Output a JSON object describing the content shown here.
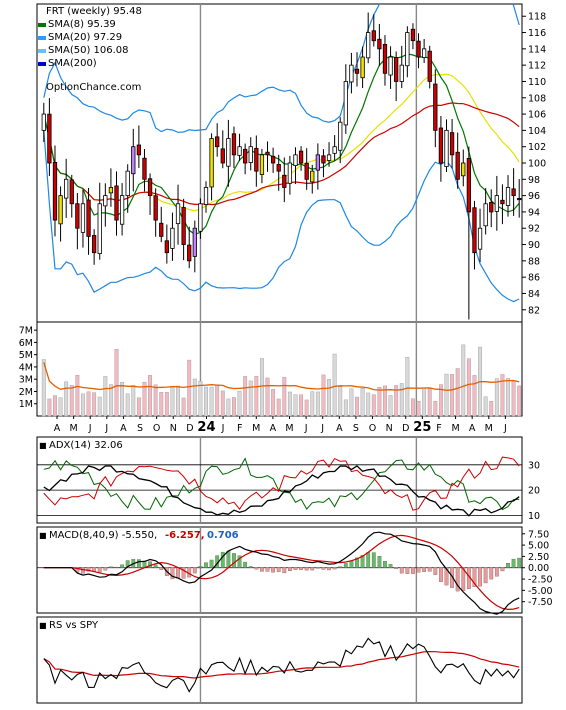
{
  "chart_data": {
    "type": "candlestick",
    "title": "FRT (weekly) 95.48",
    "source": "OptionChance.com",
    "colors": {
      "up_candle": "#ffffff",
      "down_candle": "#cc0000",
      "upper_band": "#1e88e5",
      "lower_band": "#1e88e5",
      "sma8": "#007700",
      "sma20": "#3399ff",
      "sma50": "#cc0000",
      "sma200": "#0000cc",
      "volume_up": "#d8d8d8",
      "volume_down": "#f4b8c0",
      "volume_avg": "#e06000",
      "adx": "#000000",
      "plus_di": "#006600",
      "minus_di": "#cc0000",
      "macd": "#000000",
      "signal": "#cc0000",
      "hist_up": "#66bb66",
      "hist_down": "#ee9999",
      "rs": "#000000",
      "rs_ma": "#cc0000"
    },
    "legend": [
      {
        "name": "SMA(8)",
        "value": "95.39",
        "color": "#007700"
      },
      {
        "name": "SMA(20)",
        "value": "97.29",
        "color": "#3399ff"
      },
      {
        "name": "SMA(50)",
        "value": "106.08",
        "color": "#66c2f0"
      },
      {
        "name": "SMA(200)",
        "value": "",
        "color": "#0000cc"
      }
    ],
    "x_labels": [
      "A",
      "M",
      "J",
      "J",
      "A",
      "S",
      "O",
      "N",
      "D",
      "24",
      "J",
      "F",
      "M",
      "A",
      "M",
      "J",
      "J",
      "A",
      "S",
      "O",
      "N",
      "D",
      "25",
      "F",
      "M",
      "A",
      "M",
      "J"
    ],
    "price_axis": {
      "min": 82,
      "max": 118,
      "ticks": [
        82,
        84,
        86,
        88,
        90,
        92,
        94,
        96,
        98,
        100,
        102,
        104,
        106,
        108,
        110,
        112,
        114,
        116,
        118
      ]
    },
    "price_ylim": [
      80.5,
      119.5
    ],
    "volume_axis": {
      "unit": "M",
      "ticks": [
        "1M",
        "2M",
        "3M",
        "4M",
        "5M",
        "6M",
        "7M"
      ],
      "max": 7.5
    },
    "adx": {
      "label": "ADX(14)",
      "value": "32.06",
      "ticks": [
        10,
        20,
        30
      ],
      "ylim": [
        7,
        41
      ]
    },
    "macd": {
      "label": "MACD(8,40,9)",
      "macd_value": "-5.550,",
      "signal_value": "-6.257,",
      "hist_value": "0.706",
      "ticks": [
        "7.50",
        "5.00",
        "2.50",
        "0.00",
        "-2.50",
        "-5.00",
        "-7.50"
      ],
      "ylim": [
        -10,
        9
      ]
    },
    "rs": {
      "label": "RS vs SPY"
    },
    "closes": [
      106,
      100,
      93,
      96,
      98,
      95,
      92,
      95,
      91,
      89,
      95,
      96,
      97,
      93,
      96,
      99,
      102,
      101,
      98,
      96,
      93,
      91,
      89,
      92,
      95,
      90,
      88,
      92,
      95,
      97,
      103,
      102,
      100,
      103,
      101,
      102,
      100,
      102,
      99,
      101,
      101,
      100,
      99,
      97,
      100,
      101,
      100,
      98,
      99,
      101,
      100,
      101,
      102,
      105,
      110,
      112,
      111,
      113,
      116,
      115,
      114,
      111,
      113,
      110,
      112,
      116,
      115,
      113,
      114,
      110,
      104,
      100,
      104,
      101,
      98,
      100,
      94,
      89,
      92,
      95,
      94,
      96,
      95,
      97,
      96,
      95.5
    ]
  }
}
